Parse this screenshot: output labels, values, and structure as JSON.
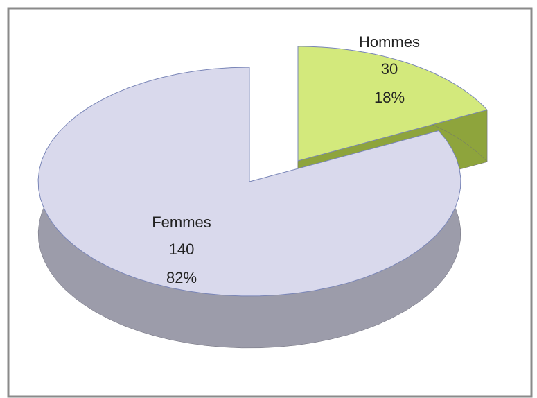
{
  "chart_data": {
    "type": "pie3d",
    "categories": [
      "Hommes",
      "Femmes"
    ],
    "values": [
      30,
      140
    ],
    "percentages": [
      18,
      82
    ],
    "percentage_labels": [
      "18%",
      "82%"
    ],
    "colors": [
      "#d3e97c",
      "#d9d9ec"
    ],
    "side_colors": [
      "#8ea43c",
      "#9c9caa"
    ]
  }
}
